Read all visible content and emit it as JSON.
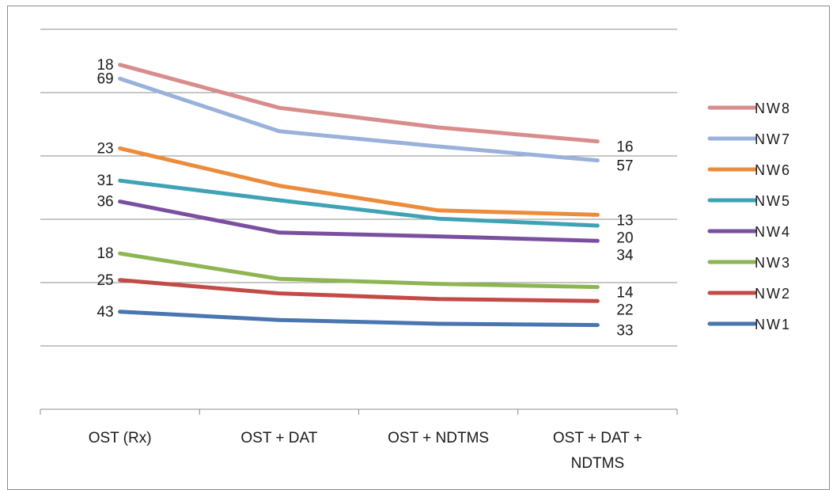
{
  "chart_data": {
    "type": "line",
    "title": "",
    "xlabel": "",
    "ylabel": "",
    "ylim": [
      0,
      60
    ],
    "y_ticks_labeled": false,
    "grid": "horizontal",
    "legend_placement": "right",
    "categories": [
      "OST (Rx)",
      "OST + DAT",
      "OST + NDTMS",
      "OST + DAT + NDTMS"
    ],
    "series": [
      {
        "name": "NW8",
        "color": "#D88C8C",
        "values": [
          54.4,
          47.6,
          44.5,
          42.3
        ],
        "start_label": "18",
        "end_label": "16"
      },
      {
        "name": "NW7",
        "color": "#99B1DB",
        "values": [
          52.2,
          43.9,
          41.5,
          39.3
        ],
        "start_label": "69",
        "end_label": "57"
      },
      {
        "name": "NW6",
        "color": "#EC8B3A",
        "values": [
          41.2,
          35.3,
          31.4,
          30.7
        ],
        "start_label": "23",
        "end_label": "13"
      },
      {
        "name": "NW5",
        "color": "#3FA3B5",
        "values": [
          36.1,
          33.0,
          30.1,
          29.0
        ],
        "start_label": "31",
        "end_label": "20"
      },
      {
        "name": "NW4",
        "color": "#7B4FA0",
        "values": [
          32.8,
          27.9,
          27.3,
          26.6
        ],
        "start_label": "36",
        "end_label": "34"
      },
      {
        "name": "NW3",
        "color": "#8DB552",
        "values": [
          24.6,
          20.6,
          19.8,
          19.3
        ],
        "start_label": "18",
        "end_label": "14"
      },
      {
        "name": "NW2",
        "color": "#C24B47",
        "values": [
          20.4,
          18.3,
          17.4,
          17.1
        ],
        "start_label": "25",
        "end_label": "22"
      },
      {
        "name": "NW1",
        "color": "#4975B0",
        "values": [
          15.4,
          14.1,
          13.5,
          13.3
        ],
        "start_label": "43",
        "end_label": "33"
      }
    ]
  }
}
